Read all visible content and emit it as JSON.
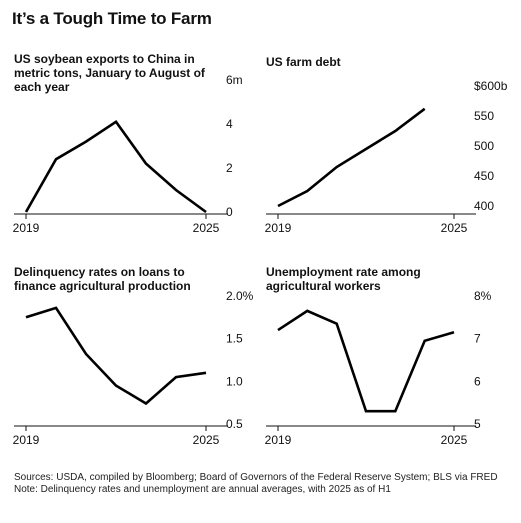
{
  "page": {
    "title": "It’s a Tough Time to Farm",
    "sources": "Sources: USDA, compiled by Bloomberg; Board of Governors of the Federal Reserve System; BLS via FRED",
    "note": "Note: Delinquency rates and unemployment are annual averages, with 2025 as of H1"
  },
  "chart_data": [
    {
      "type": "line",
      "title": "US soybean exports to China in metric tons, January to August of each year",
      "x": [
        2019,
        2020,
        2021,
        2022,
        2023,
        2024,
        2025
      ],
      "values": [
        0,
        2.4,
        3.2,
        4.1,
        2.2,
        1.0,
        0.0
      ],
      "ylim": [
        0,
        6
      ],
      "yticks": [
        0,
        2,
        4,
        6
      ],
      "ytick_labels": [
        "0",
        "2",
        "4",
        "6m"
      ],
      "xtick_labels": [
        "2019",
        "2025"
      ],
      "grid": false
    },
    {
      "type": "line",
      "title": "US farm debt",
      "x": [
        2019,
        2020,
        2021,
        2022,
        2023,
        2024
      ],
      "values": [
        400,
        425,
        465,
        495,
        525,
        562
      ],
      "ylim": [
        390,
        610
      ],
      "yticks": [
        400,
        450,
        500,
        550,
        600
      ],
      "ytick_labels": [
        "400",
        "450",
        "500",
        "550",
        "$600b"
      ],
      "xtick_labels": [
        "2019",
        "2025"
      ],
      "grid": false
    },
    {
      "type": "line",
      "title": "Delinquency rates on loans to finance agricultural production",
      "x": [
        2019,
        2020,
        2021,
        2022,
        2023,
        2024,
        2025
      ],
      "values": [
        1.75,
        1.86,
        1.32,
        0.95,
        0.74,
        1.05,
        1.1
      ],
      "ylim": [
        0.5,
        2.0
      ],
      "yticks": [
        0.5,
        1.0,
        1.5,
        2.0
      ],
      "ytick_labels": [
        "0.5",
        "1.0",
        "1.5",
        "2.0%"
      ],
      "xtick_labels": [
        "2019",
        "2025"
      ],
      "grid": false
    },
    {
      "type": "line",
      "title": "Unemployment rate among agricultural workers",
      "x": [
        2019,
        2020,
        2021,
        2022,
        2023,
        2024,
        2025
      ],
      "values": [
        7.2,
        7.65,
        7.35,
        5.3,
        5.3,
        6.95,
        7.15
      ],
      "ylim": [
        5,
        8
      ],
      "yticks": [
        5,
        6,
        7,
        8
      ],
      "ytick_labels": [
        "5",
        "6",
        "7",
        "8%"
      ],
      "xtick_labels": [
        "2019",
        "2025"
      ],
      "grid": false
    }
  ]
}
